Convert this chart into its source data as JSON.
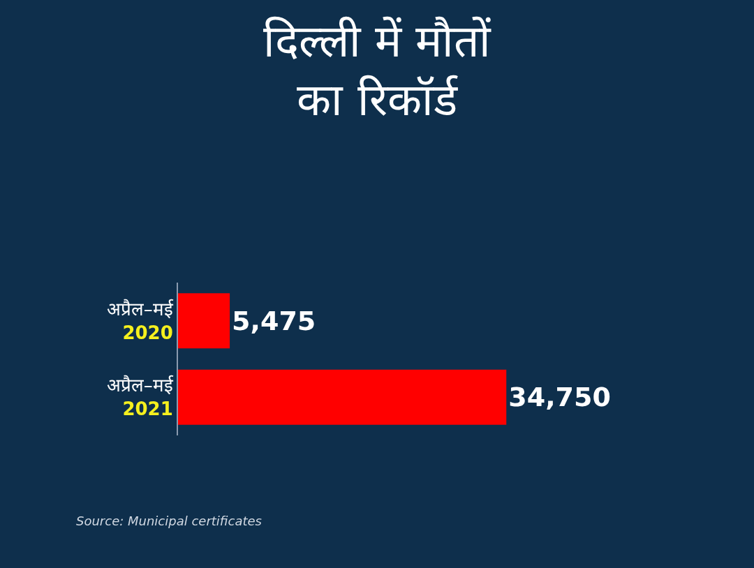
{
  "chart_data": {
    "type": "bar",
    "orientation": "horizontal",
    "title": "दिल्ली में मौतों\nका रिकॉर्ड",
    "categories": [
      "अप्रैल–मई 2020",
      "अप्रैल–मई 2021"
    ],
    "values": [
      5475,
      34750
    ],
    "value_labels": [
      "5,475",
      "34,750"
    ],
    "color": "#ff0000",
    "tick_labels": "y",
    "grid": false,
    "legend": false,
    "annotations": [
      "Source: Municipal certificates"
    ]
  }
}
